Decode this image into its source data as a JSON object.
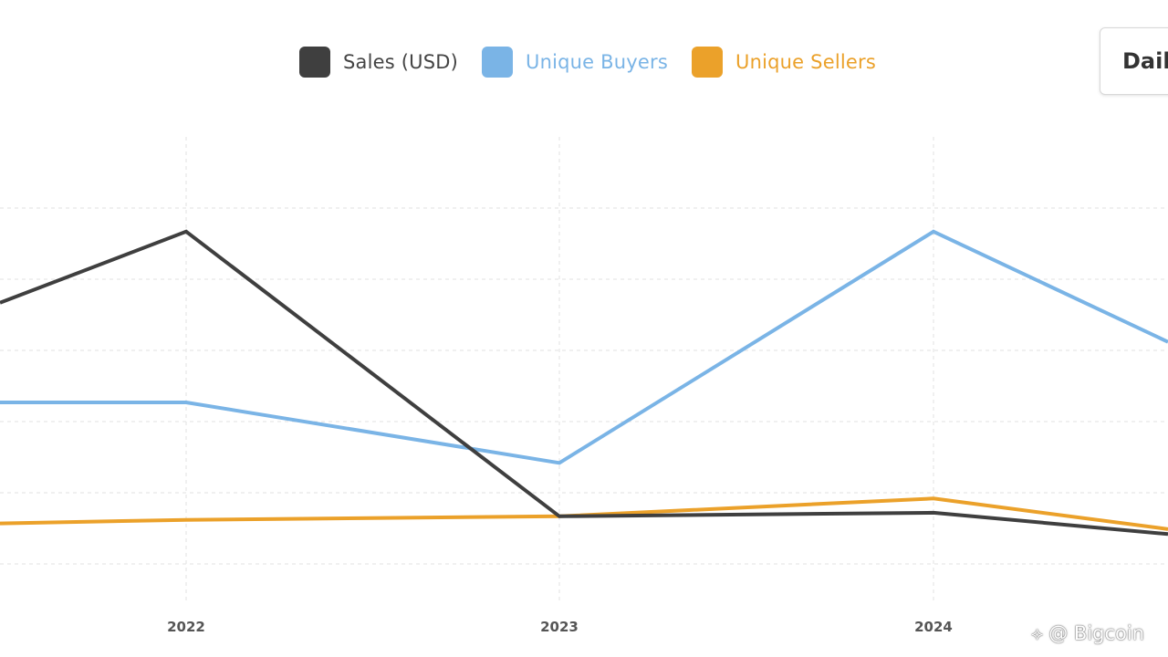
{
  "legend": {
    "items": [
      {
        "label": "Sales (USD)",
        "color": "#3f3f3f"
      },
      {
        "label": "Unique Buyers",
        "color": "#7ab4e6"
      },
      {
        "label": "Unique Sellers",
        "color": "#eba12a"
      }
    ]
  },
  "period_selector": {
    "label": "Daily"
  },
  "watermark": {
    "text": "@ Bigcoin",
    "icon": "bigcoin-logo-icon"
  },
  "chart_data": {
    "type": "line",
    "x": [
      "2022",
      "2023",
      "2024"
    ],
    "grid": true,
    "legend_position": "top",
    "series": [
      {
        "name": "Sales (USD)",
        "color": "#3f3f3f",
        "values": [
          4.9,
          0.9,
          0.95
        ]
      },
      {
        "name": "Unique Buyers",
        "color": "#7ab4e6",
        "values": [
          2.5,
          1.65,
          4.9
        ]
      },
      {
        "name": "Unique Sellers",
        "color": "#eba12a",
        "values": [
          0.85,
          0.9,
          1.15
        ]
      }
    ]
  }
}
